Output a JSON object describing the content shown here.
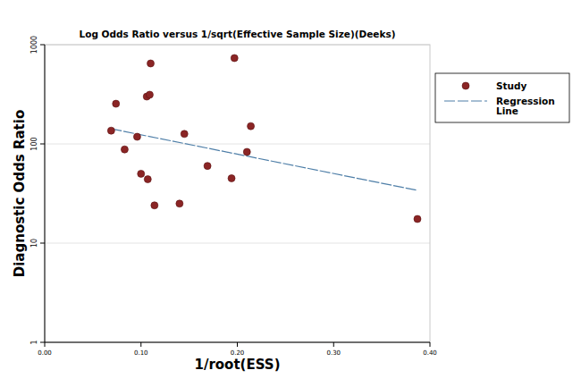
{
  "chart_data": {
    "type": "scatter",
    "title": "Log Odds Ratio versus 1/sqrt(Effective Sample Size)(Deeks)",
    "x_label": "1/root(ESS)",
    "y_label": "Diagnostic Odds Ratio",
    "log": "y",
    "grid": true,
    "legend": "top-right",
    "xlim": [
      0,
      0.4
    ],
    "ylim": [
      1,
      1000
    ],
    "xticks": [
      {
        "value": 0,
        "label": "0.00"
      },
      {
        "value": 0.1,
        "label": "0.10"
      },
      {
        "value": 0.2,
        "label": "0.20"
      },
      {
        "value": 0.3,
        "label": "0.30"
      },
      {
        "value": 0.4,
        "label": "0.40"
      }
    ],
    "yticks": [
      1,
      10,
      100,
      1000
    ],
    "series": [
      {
        "name": "Study",
        "type": "scatter",
        "marker": "circle",
        "color": "#8b2525",
        "x": [
          0.069,
          0.074,
          0.083,
          0.096,
          0.1,
          0.106,
          0.109,
          0.11,
          0.107,
          0.114,
          0.14,
          0.145,
          0.169,
          0.194,
          0.197,
          0.21,
          0.214,
          0.387
        ],
        "values": [
          136,
          254,
          88,
          118,
          50,
          300,
          313,
          647,
          44,
          24,
          25,
          126,
          60,
          45,
          733,
          83,
          151,
          17.5
        ]
      },
      {
        "name": "Regression Line",
        "type": "line",
        "line_style": "dashed",
        "color": "#4f7fa8",
        "x": [
          0.069,
          0.387
        ],
        "values": [
          142,
          34
        ]
      }
    ]
  }
}
